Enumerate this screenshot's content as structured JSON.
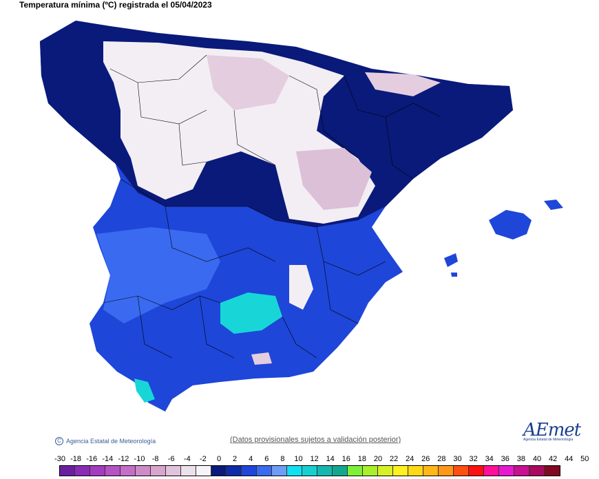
{
  "title": "Temperatura mínima (ºC) registrada el 05/04/2023",
  "footer": {
    "credit": "Agencia Estatal de Meteorología",
    "note": "(Datos provisionales sujetos a validación posterior)",
    "logo_text": "AEmet",
    "logo_sub": "Agencia Estatal de Meteorología"
  },
  "scale": {
    "labels": [
      "-30",
      "-18",
      "-16",
      "-14",
      "-12",
      "-10",
      "-8",
      "-6",
      "-4",
      "-2",
      "0",
      "2",
      "4",
      "6",
      "8",
      "10",
      "12",
      "14",
      "16",
      "18",
      "20",
      "22",
      "24",
      "26",
      "28",
      "30",
      "32",
      "34",
      "36",
      "38",
      "40",
      "42",
      "44",
      "50"
    ],
    "colors": [
      "#6a1fa0",
      "#8a2bb5",
      "#a33cc0",
      "#b552c4",
      "#c46ec8",
      "#cf8ac9",
      "#d8a5cf",
      "#e2c3dd",
      "#ece0ea",
      "#f7f4f8",
      "#0a1a7a",
      "#0f2aa8",
      "#1e46d8",
      "#3a6af0",
      "#6f9cf5",
      "#11e0f0",
      "#18cfd0",
      "#14b8b0",
      "#12a890",
      "#7df03a",
      "#a8f02a",
      "#d8f028",
      "#fff020",
      "#ffd818",
      "#ffb818",
      "#ff9818",
      "#ff5010",
      "#ff1010",
      "#ff1098",
      "#e81ad0",
      "#c81090",
      "#a80a60",
      "#800a20"
    ]
  }
}
